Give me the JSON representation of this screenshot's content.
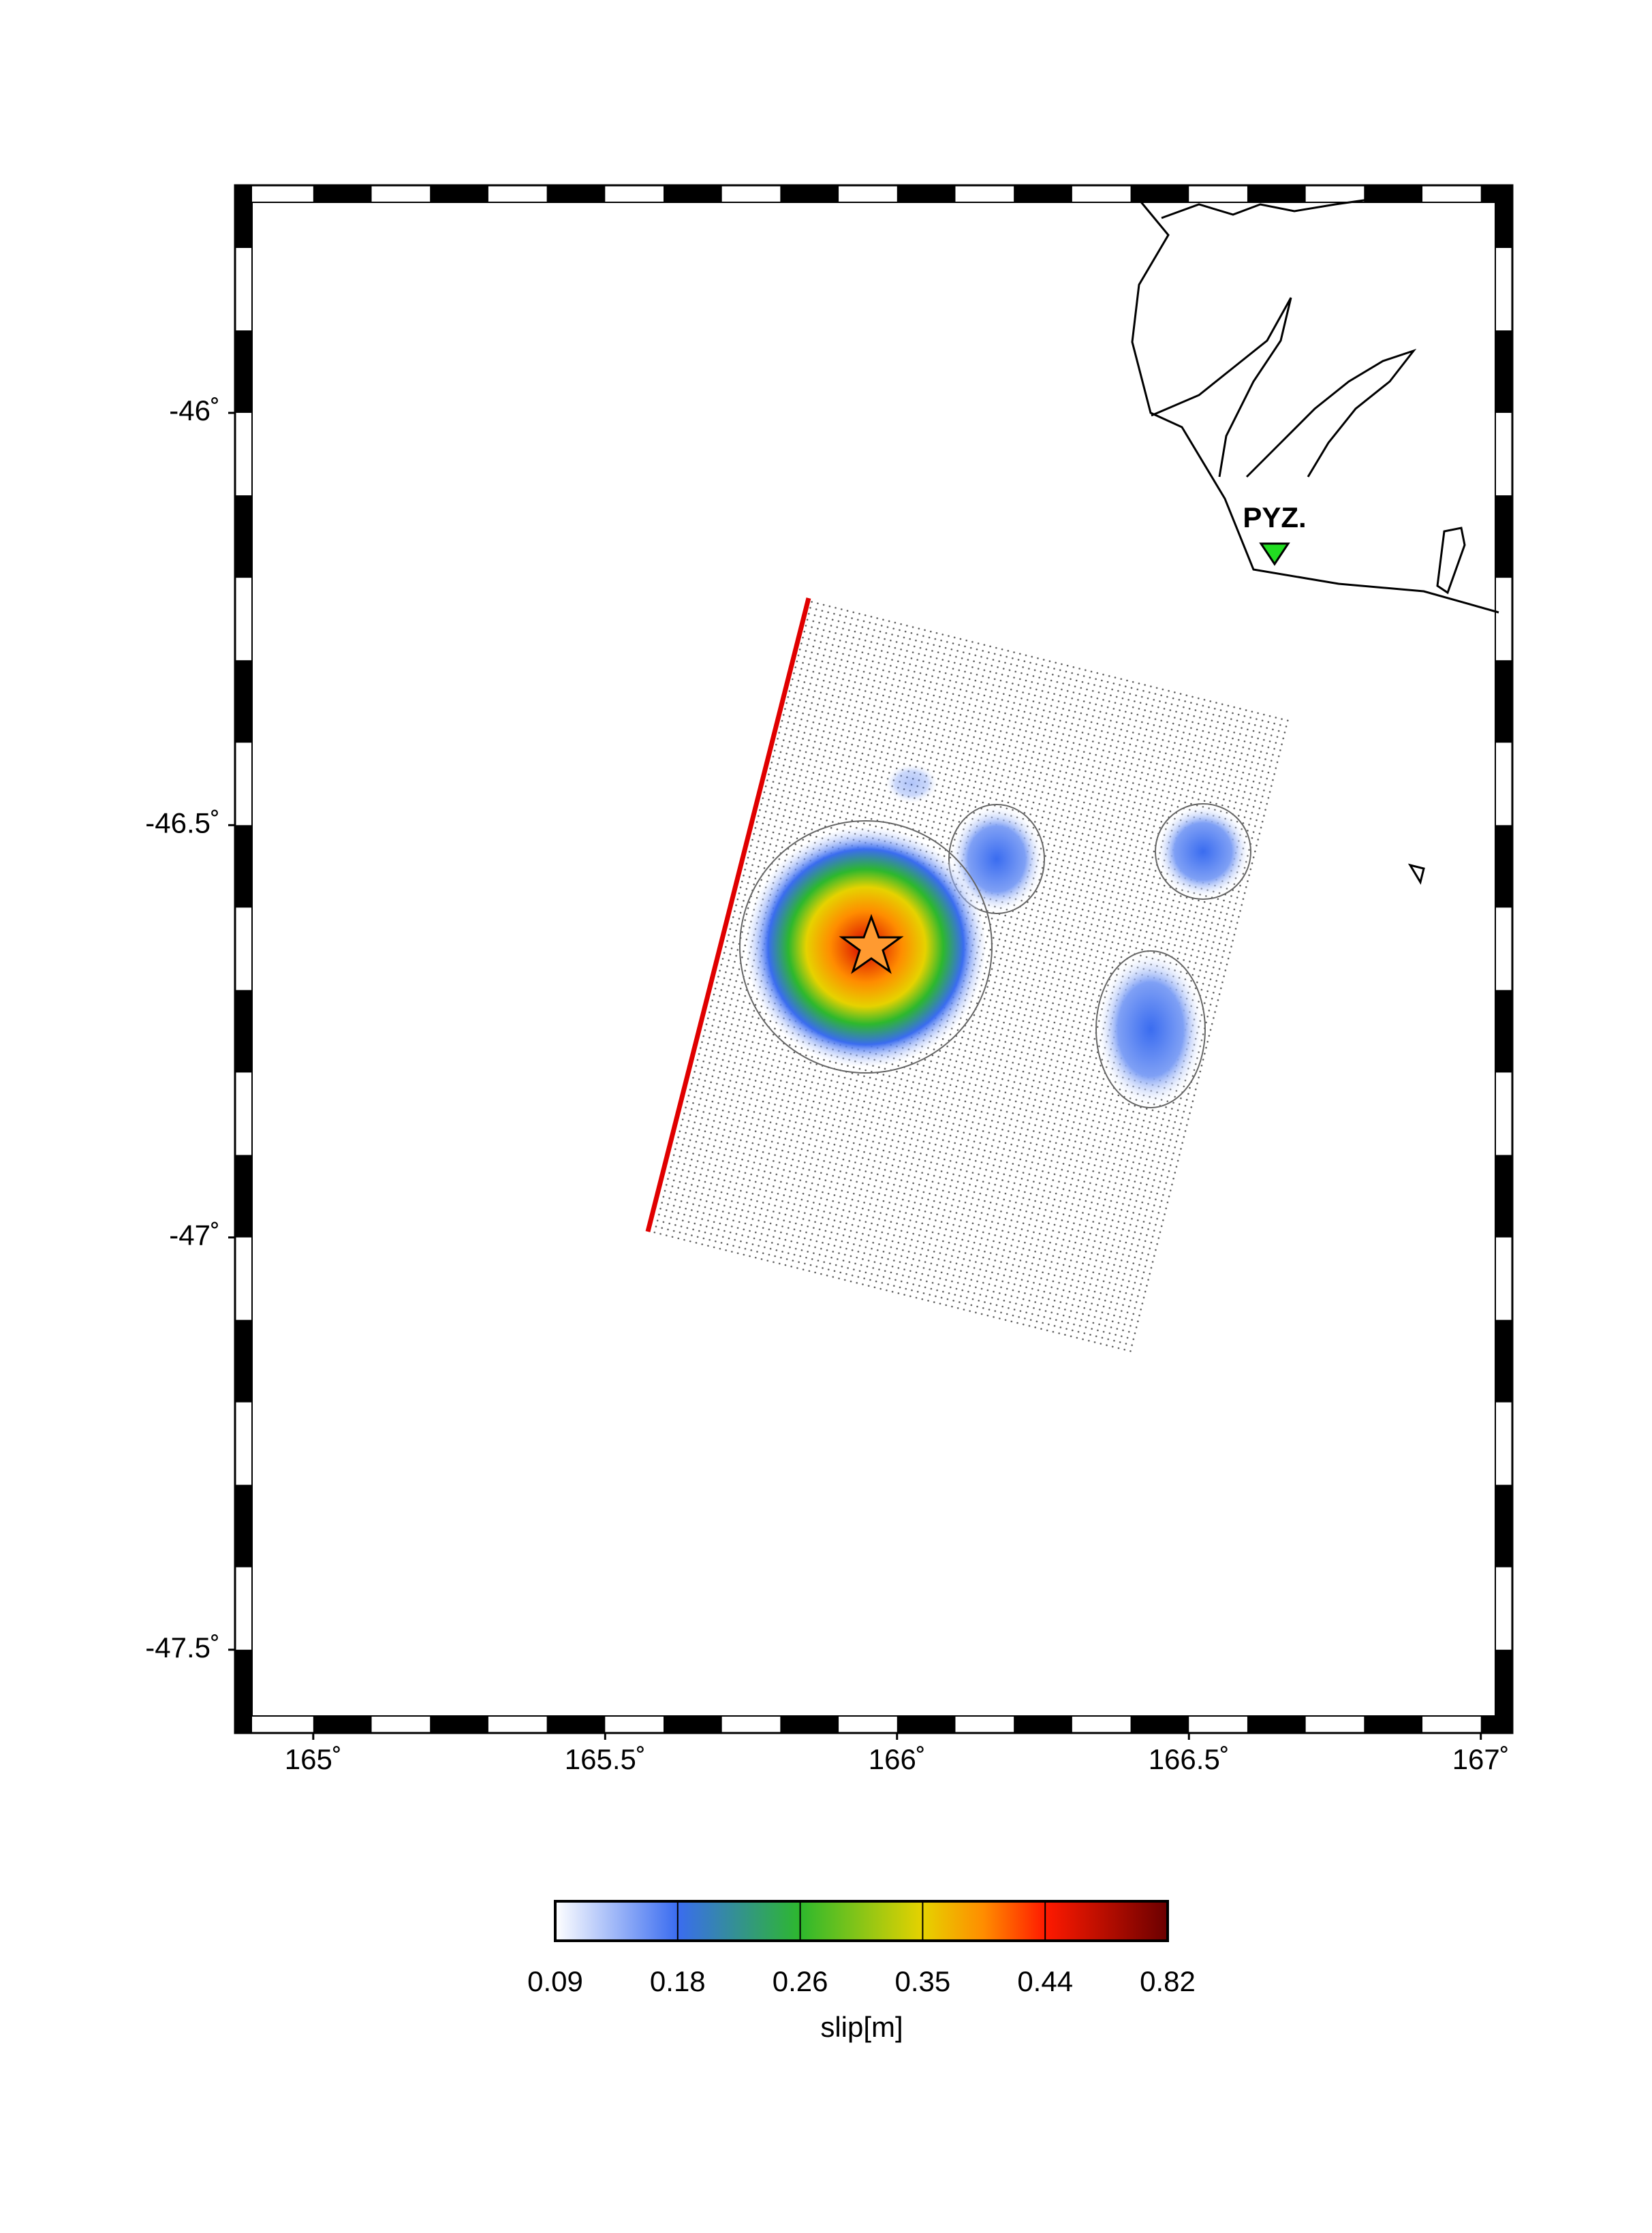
{
  "map": {
    "xlim": [
      164.866,
      167.054
    ],
    "ylim": [
      -47.601,
      -45.724
    ],
    "xticks": [
      {
        "value": 165,
        "label": "165˚"
      },
      {
        "value": 165.5,
        "label": "165.5˚"
      },
      {
        "value": 166,
        "label": "166˚"
      },
      {
        "value": 166.5,
        "label": "166.5˚"
      },
      {
        "value": 167,
        "label": "167˚"
      }
    ],
    "yticks": [
      {
        "value": -46,
        "label": "-46˚"
      },
      {
        "value": -46.5,
        "label": "-46.5˚"
      },
      {
        "value": -47,
        "label": "-47˚"
      },
      {
        "value": -47.5,
        "label": "-47.5˚"
      }
    ],
    "station": "PYZ.",
    "colorbar": {
      "ticks": [
        0.09,
        0.18,
        0.26,
        0.35,
        0.44,
        0.82
      ],
      "label": "slip[m]"
    }
  }
}
